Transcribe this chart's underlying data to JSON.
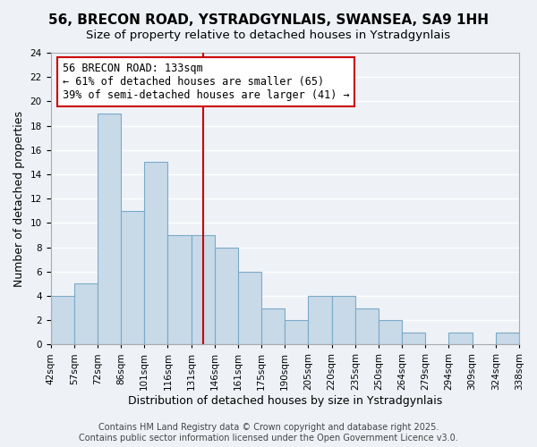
{
  "title": "56, BRECON ROAD, YSTRADGYNLAIS, SWANSEA, SA9 1HH",
  "subtitle": "Size of property relative to detached houses in Ystradgynlais",
  "xlabel": "Distribution of detached houses by size in Ystradgynlais",
  "ylabel": "Number of detached properties",
  "bin_labels": [
    "42sqm",
    "57sqm",
    "72sqm",
    "86sqm",
    "101sqm",
    "116sqm",
    "131sqm",
    "146sqm",
    "161sqm",
    "175sqm",
    "190sqm",
    "205sqm",
    "220sqm",
    "235sqm",
    "250sqm",
    "264sqm",
    "279sqm",
    "294sqm",
    "309sqm",
    "324sqm",
    "338sqm"
  ],
  "bar_values": [
    4,
    5,
    19,
    11,
    15,
    9,
    9,
    8,
    6,
    3,
    2,
    4,
    4,
    3,
    2,
    1,
    0,
    1,
    0,
    1
  ],
  "bar_color": "#c8d9e8",
  "bar_edge_color": "#7aaac8",
  "vline_x": 6.5,
  "vline_color": "#cc0000",
  "annotation_box_text": "56 BRECON ROAD: 133sqm\n← 61% of detached houses are smaller (65)\n39% of semi-detached houses are larger (41) →",
  "ylim": [
    0,
    24
  ],
  "yticks": [
    0,
    2,
    4,
    6,
    8,
    10,
    12,
    14,
    16,
    18,
    20,
    22,
    24
  ],
  "background_color": "#eef2f7",
  "grid_color": "#ffffff",
  "footer_text": "Contains HM Land Registry data © Crown copyright and database right 2025.\nContains public sector information licensed under the Open Government Licence v3.0.",
  "title_fontsize": 11,
  "subtitle_fontsize": 9.5,
  "xlabel_fontsize": 9,
  "ylabel_fontsize": 9,
  "tick_fontsize": 7.5,
  "annotation_fontsize": 8.5,
  "footer_fontsize": 7
}
